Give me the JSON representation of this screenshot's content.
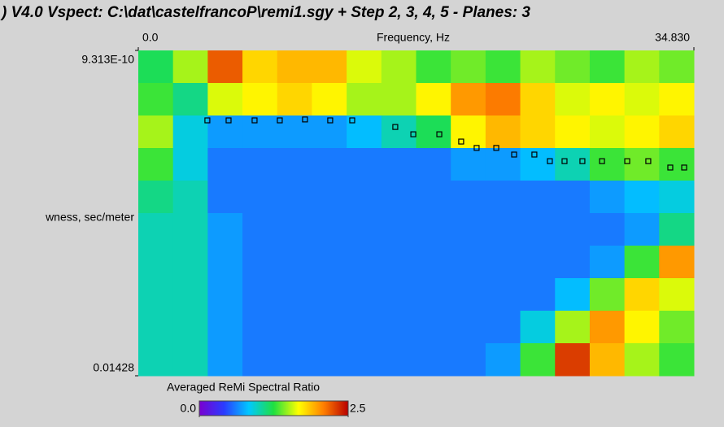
{
  "chart_data": {
    "type": "heatmap",
    "title": ") V4.0 Vspect: C:\\dat\\castelfrancoP\\remi1.sgy + Step 2, 3, 4, 5 - Planes: 3",
    "xlabel": "Frequency, Hz",
    "ylabel": "wness, sec/meter",
    "xlim": [
      0,
      34.83
    ],
    "xticks": [
      {
        "value": 0,
        "label": "0.0"
      },
      {
        "value": 34.83,
        "label": "34.830"
      }
    ],
    "ylim": [
      9.313e-10,
      0.01428
    ],
    "yticks": [
      {
        "value": 9.313e-10,
        "label": "9.313E-10"
      },
      0.01428
    ],
    "y_inverted": true,
    "z": [
      [
        1.2,
        1.5,
        2.2,
        1.8,
        1.9,
        1.9,
        1.6,
        1.5,
        1.3,
        1.4,
        1.3,
        1.5,
        1.4,
        1.3,
        1.5,
        1.4
      ],
      [
        1.3,
        1.1,
        1.6,
        1.7,
        1.8,
        1.7,
        1.5,
        1.5,
        1.7,
        2.0,
        2.1,
        1.8,
        1.6,
        1.7,
        1.6,
        1.7
      ],
      [
        1.5,
        0.9,
        0.7,
        0.7,
        0.7,
        0.7,
        0.8,
        1.0,
        1.2,
        1.7,
        1.9,
        1.8,
        1.7,
        1.6,
        1.7,
        1.8
      ],
      [
        1.3,
        0.9,
        0.6,
        0.6,
        0.6,
        0.6,
        0.6,
        0.6,
        0.6,
        0.7,
        0.7,
        0.8,
        1.0,
        1.3,
        1.4,
        1.3
      ],
      [
        1.1,
        1.0,
        0.6,
        0.6,
        0.6,
        0.6,
        0.6,
        0.6,
        0.6,
        0.6,
        0.6,
        0.6,
        0.6,
        0.7,
        0.8,
        0.9
      ],
      [
        1.0,
        1.0,
        0.7,
        0.6,
        0.6,
        0.6,
        0.6,
        0.6,
        0.6,
        0.6,
        0.6,
        0.6,
        0.6,
        0.6,
        0.7,
        1.1
      ],
      [
        1.0,
        1.0,
        0.7,
        0.6,
        0.6,
        0.6,
        0.6,
        0.6,
        0.6,
        0.6,
        0.6,
        0.6,
        0.6,
        0.7,
        1.3,
        2.0
      ],
      [
        1.0,
        1.0,
        0.7,
        0.6,
        0.6,
        0.6,
        0.6,
        0.6,
        0.6,
        0.6,
        0.6,
        0.6,
        0.8,
        1.4,
        1.8,
        1.6
      ],
      [
        1.0,
        1.0,
        0.7,
        0.6,
        0.6,
        0.6,
        0.6,
        0.6,
        0.6,
        0.6,
        0.6,
        0.9,
        1.5,
        2.0,
        1.7,
        1.4
      ],
      [
        1.0,
        1.0,
        0.7,
        0.6,
        0.6,
        0.6,
        0.6,
        0.6,
        0.6,
        0.6,
        0.7,
        1.3,
        2.3,
        1.9,
        1.5,
        1.3
      ]
    ],
    "colormap": [
      "#7a00d0",
      "#2a3cff",
      "#00c8ff",
      "#20e040",
      "#ffff00",
      "#ff8000",
      "#b80000"
    ],
    "colorbar_label": "Averaged ReMi Spectral Ratio",
    "clim": [
      0,
      2.5
    ],
    "cticks": [
      {
        "value": 0,
        "label": "0.0"
      },
      {
        "value": 2.5,
        "label": "2.5"
      }
    ],
    "picks": {
      "x": [
        4.33,
        5.66,
        7.29,
        8.87,
        10.45,
        12.03,
        13.41,
        16.11,
        17.24,
        18.87,
        20.24,
        21.21,
        22.44,
        23.56,
        24.83,
        25.8,
        26.72,
        27.84,
        29.07,
        30.65,
        31.97,
        33.35,
        34.22
      ],
      "y": [
        0.00307,
        0.00307,
        0.00307,
        0.00307,
        0.00303,
        0.00307,
        0.00307,
        0.00336,
        0.00368,
        0.00368,
        0.004,
        0.00428,
        0.00428,
        0.00457,
        0.00457,
        0.00486,
        0.00486,
        0.00486,
        0.00486,
        0.00486,
        0.00486,
        0.00514,
        0.00514
      ]
    }
  }
}
